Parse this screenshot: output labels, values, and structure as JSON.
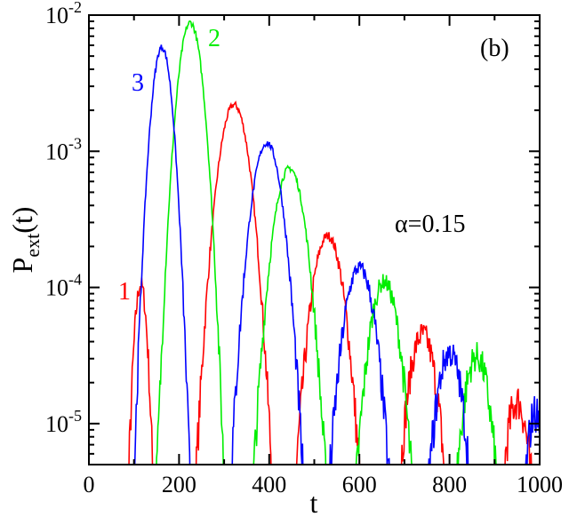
{
  "chart_data": {
    "type": "line",
    "panel_label": "(b)",
    "annotation": "α=0.15",
    "xlabel": "t",
    "ylabel_main": "P",
    "ylabel_sub": "ext",
    "ylabel_tail": "(t)",
    "xlim": [
      0,
      1000
    ],
    "ylim": [
      5e-06,
      0.01
    ],
    "yscale": "log",
    "grid": false,
    "x_ticks": [
      {
        "value": 0,
        "label": "0"
      },
      {
        "value": 200,
        "label": "200"
      },
      {
        "value": 400,
        "label": "400"
      },
      {
        "value": 600,
        "label": "600"
      },
      {
        "value": 800,
        "label": "800"
      },
      {
        "value": 1000,
        "label": "1000"
      }
    ],
    "y_ticks": [
      {
        "value": 1e-05,
        "base": "10",
        "exp": "-5"
      },
      {
        "value": 0.0001,
        "base": "10",
        "exp": "-4"
      },
      {
        "value": 0.001,
        "base": "10",
        "exp": "-3"
      },
      {
        "value": 0.01,
        "base": "10",
        "exp": "-2"
      }
    ],
    "series": [
      {
        "name": "1",
        "color": "#ff0000",
        "peaks": [
          {
            "t": 115,
            "p": 0.000105,
            "w": 22
          },
          {
            "t": 322,
            "p": 0.0022,
            "w": 50
          },
          {
            "t": 530,
            "p": 0.00024,
            "w": 52
          },
          {
            "t": 740,
            "p": 4.5e-05,
            "w": 48
          },
          {
            "t": 950,
            "p": 1.45e-05,
            "w": 40
          }
        ]
      },
      {
        "name": "2",
        "color": "#00ee00",
        "peaks": [
          {
            "t": 225,
            "p": 0.0088,
            "w": 40
          },
          {
            "t": 445,
            "p": 0.00075,
            "w": 52
          },
          {
            "t": 655,
            "p": 0.00011,
            "w": 50
          },
          {
            "t": 860,
            "p": 3.1e-05,
            "w": 46
          }
        ]
      },
      {
        "name": "3",
        "color": "#0000ff",
        "peaks": [
          {
            "t": 162,
            "p": 0.0058,
            "w": 34
          },
          {
            "t": 395,
            "p": 0.00115,
            "w": 50
          },
          {
            "t": 600,
            "p": 0.00014,
            "w": 52
          },
          {
            "t": 800,
            "p": 3.3e-05,
            "w": 46
          },
          {
            "t": 990,
            "p": 1.2e-05,
            "w": 30
          }
        ]
      }
    ],
    "series_labels": [
      {
        "text": "1",
        "color": "#ff0000"
      },
      {
        "text": "2",
        "color": "#00ee00"
      },
      {
        "text": "3",
        "color": "#0000ff"
      }
    ]
  }
}
